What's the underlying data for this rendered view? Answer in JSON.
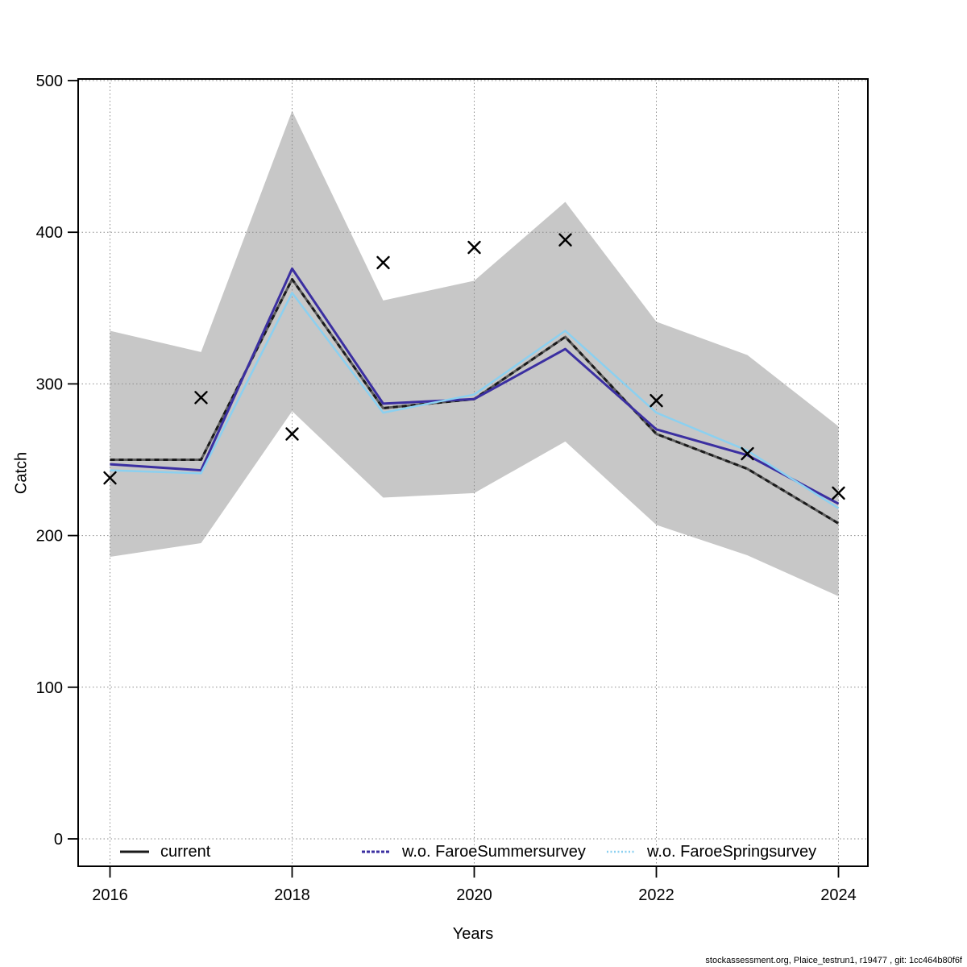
{
  "chart_data": {
    "type": "line",
    "title": "",
    "xlabel": "Years",
    "ylabel": "Catch",
    "x": [
      2016,
      2017,
      2018,
      2019,
      2020,
      2021,
      2022,
      2023,
      2024
    ],
    "x_ticks": [
      2016,
      2018,
      2020,
      2022,
      2024
    ],
    "y_ticks": [
      0,
      100,
      200,
      300,
      400,
      500
    ],
    "ylim": [
      -20,
      505
    ],
    "xlim": [
      2015.65,
      2024.35
    ],
    "grid": "dotted",
    "grid_color": "#8c8c8c",
    "legend_position": "bottom-inside",
    "series": [
      {
        "name": "current",
        "color": "#1a1a1a",
        "style": "solid-with-dash-overlay",
        "values": [
          250,
          250,
          369,
          284,
          290,
          331,
          267,
          244,
          208
        ]
      },
      {
        "name": "w.o. FaroeSummersurvey",
        "color": "#3b2fa1",
        "style": "solid",
        "values": [
          247,
          243,
          376,
          287,
          290,
          323,
          270,
          253,
          221
        ]
      },
      {
        "name": "w.o. FaroeSpringsurvey",
        "color": "#8bd0f0",
        "style": "solid",
        "values": [
          243,
          241,
          360,
          281,
          293,
          335,
          281,
          256,
          218
        ]
      }
    ],
    "band": {
      "name": "confidence-band",
      "color": "#c7c7c7",
      "upper": [
        335,
        321,
        480,
        355,
        368,
        420,
        341,
        319,
        272
      ],
      "lower": [
        186,
        195,
        282,
        225,
        228,
        262,
        207,
        187,
        160
      ]
    },
    "markers": {
      "name": "observed-catch",
      "symbol": "x",
      "color": "#000000",
      "values": [
        238,
        291,
        267,
        380,
        390,
        395,
        289,
        254,
        228
      ]
    }
  },
  "footer": {
    "text": "stockassessment.org, Plaice_testrun1, r19477 , git: 1cc464b80f6f"
  }
}
